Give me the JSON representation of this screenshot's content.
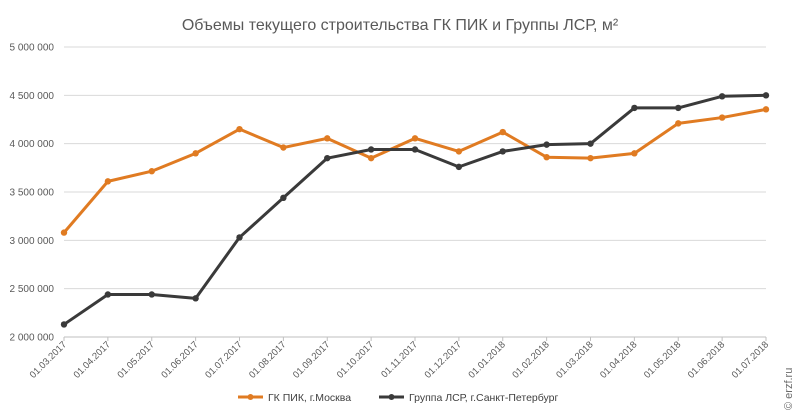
{
  "chart_data": {
    "type": "line",
    "title": "Объемы текущего строительства ГК ПИК и Группы ЛСР, м²",
    "xlabel": "",
    "ylabel": "",
    "ylim": [
      2000000,
      5000000
    ],
    "yticks": [
      2000000,
      2500000,
      3000000,
      3500000,
      4000000,
      4500000,
      5000000
    ],
    "ytick_labels": [
      "2 000 000",
      "2 500 000",
      "3 000 000",
      "3 500 000",
      "4 000 000",
      "4 500 000",
      "5 000 000"
    ],
    "grid": true,
    "legend_position": "bottom",
    "categories": [
      "01.03.2017",
      "01.04.2017",
      "01.05.2017",
      "01.06.2017",
      "01.07.2017",
      "01.08.2017",
      "01.09.2017",
      "01.10.2017",
      "01.11.2017",
      "01.12.2017",
      "01.01.2018",
      "01.02.2018",
      "01.03.2018",
      "01.04.2018",
      "01.05.2018",
      "01.06.2018",
      "01.07.2018"
    ],
    "series": [
      {
        "name": "ГК ПИК, г.Москва",
        "color": "#e07b22",
        "values": [
          3080000,
          3610000,
          3715000,
          3900000,
          4150000,
          3960000,
          4055000,
          3850000,
          4055000,
          3920000,
          4120000,
          3860000,
          3850000,
          3900000,
          4210000,
          4270000,
          4355000
        ]
      },
      {
        "name": "Группа ЛСР, г.Санкт-Петербург",
        "color": "#3a3a3a",
        "values": [
          2130000,
          2440000,
          2440000,
          2400000,
          3030000,
          3440000,
          3850000,
          3940000,
          3940000,
          3760000,
          3920000,
          3990000,
          4000000,
          4370000,
          4370000,
          4490000,
          4500000
        ]
      }
    ]
  },
  "watermark": "© erzf.ru"
}
